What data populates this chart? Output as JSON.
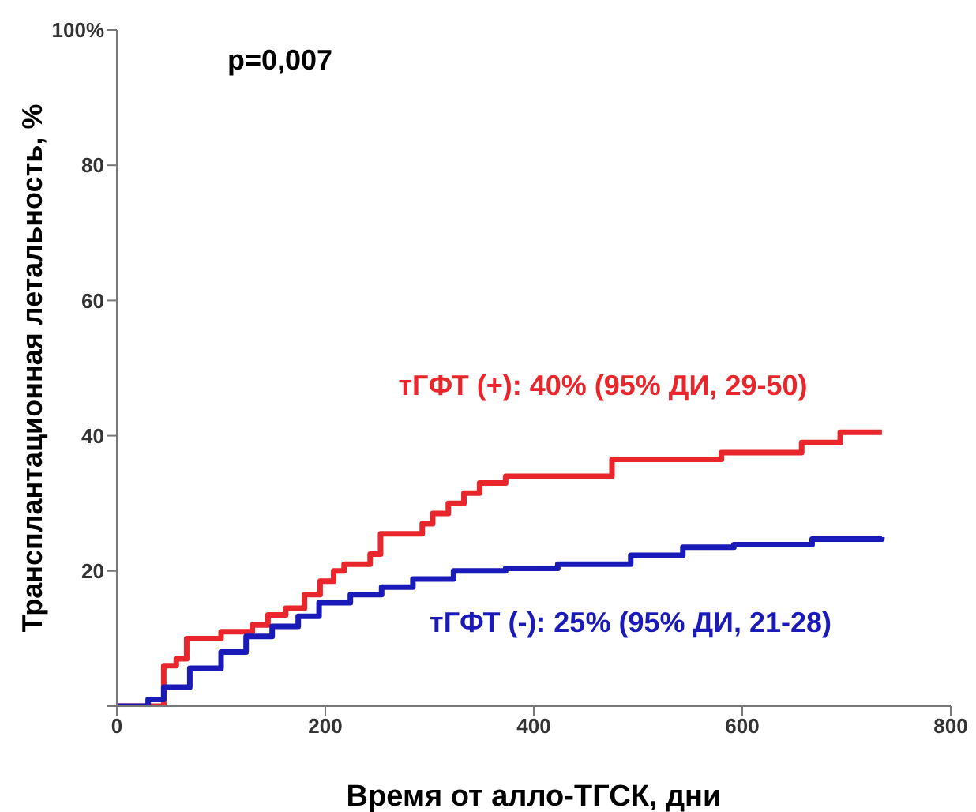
{
  "chart_data": {
    "type": "step",
    "xlabel": "Время от алло-ТГСК, дни",
    "ylabel": "Трансплантационная летальность, %",
    "annotations": [
      "p=0,007"
    ],
    "xlim": [
      0,
      800
    ],
    "xticks": [
      0,
      200,
      400,
      600,
      800
    ],
    "ylim": [
      0,
      100
    ],
    "yticks": [
      {
        "value": 0,
        "label": null
      },
      20,
      40,
      60,
      80,
      {
        "value": 100,
        "label": "100%"
      }
    ],
    "marker": "none",
    "line_style": "solid",
    "series": [
      {
        "name": "тГФТ (+): 40% (95% ДИ, 29-50)",
        "color": "#e8262b",
        "x": [
          0,
          30,
          45,
          57,
          67,
          100,
          130,
          145,
          162,
          180,
          195,
          208,
          218,
          243,
          253,
          293,
          303,
          318,
          333,
          348,
          373,
          475,
          580,
          657,
          694,
          734
        ],
        "values": [
          0,
          0,
          6,
          7,
          10,
          11,
          12,
          13.5,
          14.5,
          16.5,
          18.5,
          20,
          21,
          22.5,
          25.5,
          27,
          28.5,
          30,
          31.5,
          33,
          34,
          36.5,
          37.5,
          39,
          40.5,
          40.5
        ]
      },
      {
        "name": "тГФТ (-): 25% (95% ДИ, 21-28)",
        "color": "#1a1ab8",
        "x": [
          0,
          30,
          45,
          70,
          100,
          124,
          149,
          174,
          194,
          224,
          254,
          284,
          323,
          373,
          423,
          493,
          543,
          592,
          667,
          734
        ],
        "values": [
          0,
          1,
          2.8,
          5.6,
          8,
          10.3,
          11.8,
          13.3,
          15.3,
          16.5,
          17.6,
          18.8,
          20,
          20.4,
          21,
          22.3,
          23.5,
          23.9,
          24.7,
          25
        ]
      }
    ]
  }
}
